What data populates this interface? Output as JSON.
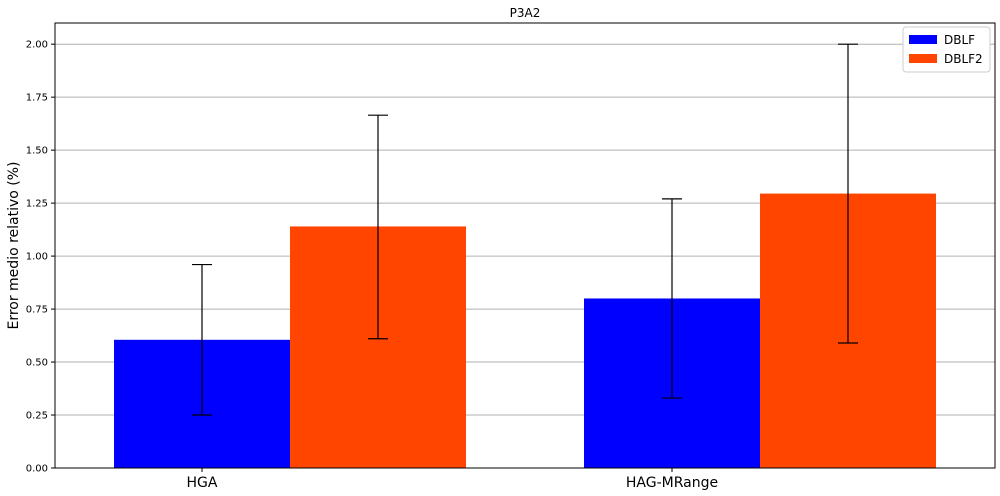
{
  "chart_data": {
    "type": "bar",
    "title": "P3A2",
    "xlabel": "",
    "ylabel": "Error medio relativo (%)",
    "categories": [
      "HGA",
      "HAG-MRange"
    ],
    "ylim": [
      0,
      2.1
    ],
    "yticks": [
      "0.00",
      "0.25",
      "0.50",
      "0.75",
      "1.00",
      "1.25",
      "1.50",
      "1.75",
      "2.00"
    ],
    "grid": "horizontal",
    "legend_position": "top-right",
    "series": [
      {
        "name": "DBLF",
        "color": "#0000ff",
        "values": [
          0.605,
          0.8
        ],
        "err_low": [
          0.25,
          0.33
        ],
        "err_high": [
          0.96,
          1.27
        ]
      },
      {
        "name": "DBLF2",
        "color": "#ff4500",
        "values": [
          1.14,
          1.295
        ],
        "err_low": [
          0.61,
          0.59
        ],
        "err_high": [
          1.665,
          2.0
        ]
      }
    ]
  }
}
